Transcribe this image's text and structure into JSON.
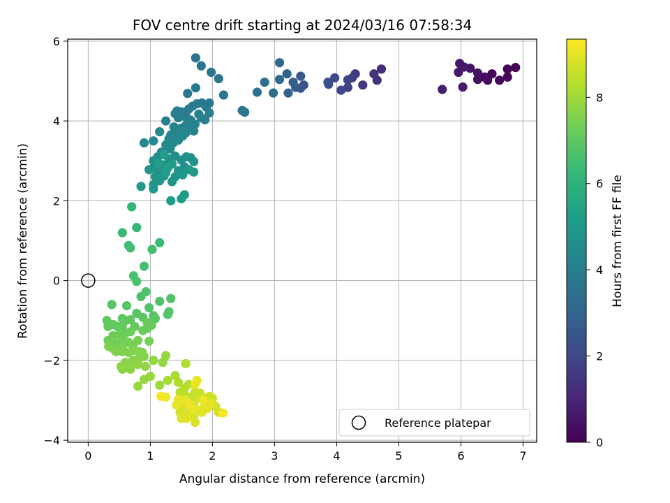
{
  "chart_data": {
    "type": "scatter",
    "title": "FOV centre drift starting at 2024/03/16 07:58:34",
    "xlabel": "Angular distance from reference (arcmin)",
    "ylabel": "Rotation from reference (arcmin)",
    "xlim": [
      -0.33,
      7.22
    ],
    "ylim": [
      -4.05,
      6.05
    ],
    "xticks": [
      0,
      1,
      2,
      3,
      4,
      5,
      6,
      7
    ],
    "yticks": [
      -4,
      -2,
      0,
      2,
      4,
      6
    ],
    "grid": true,
    "colormap": "viridis",
    "colorbar": {
      "label": "Hours from first FF file",
      "range": [
        0,
        9.35
      ],
      "ticks": [
        0,
        2,
        4,
        6,
        8
      ]
    },
    "reference_point": {
      "x": 0,
      "y": 0,
      "label": "Reference platepar"
    },
    "legend": {
      "location": "lower-right",
      "entries": [
        "Reference platepar"
      ]
    },
    "points": [
      [
        6.88,
        5.34,
        0.05
      ],
      [
        6.75,
        5.3,
        0.1
      ],
      [
        6.75,
        5.1,
        0.15
      ],
      [
        6.62,
        5.02,
        0.2
      ],
      [
        6.5,
        5.18,
        0.25
      ],
      [
        6.43,
        5.02,
        0.3
      ],
      [
        6.38,
        5.1,
        0.35
      ],
      [
        6.27,
        5.04,
        0.4
      ],
      [
        6.27,
        5.2,
        0.45
      ],
      [
        6.15,
        5.32,
        0.5
      ],
      [
        6.05,
        5.35,
        0.55
      ],
      [
        5.98,
        5.44,
        0.6
      ],
      [
        5.96,
        5.22,
        0.65
      ],
      [
        6.03,
        4.85,
        0.7
      ],
      [
        5.7,
        4.79,
        0.75
      ],
      [
        4.72,
        5.3,
        1.2
      ],
      [
        4.65,
        5.02,
        1.3
      ],
      [
        4.6,
        5.18,
        1.4
      ],
      [
        4.42,
        4.9,
        1.5
      ],
      [
        4.3,
        5.18,
        1.6
      ],
      [
        4.25,
        5.08,
        1.7
      ],
      [
        4.18,
        4.84,
        1.8
      ],
      [
        4.18,
        5.03,
        1.9
      ],
      [
        4.07,
        4.77,
        2.0
      ],
      [
        3.97,
        5.08,
        2.1
      ],
      [
        3.87,
        4.92,
        2.2
      ],
      [
        3.86,
        4.97,
        2.3
      ],
      [
        3.47,
        4.9,
        2.4
      ],
      [
        3.42,
        4.82,
        2.5
      ],
      [
        3.42,
        5.12,
        2.6
      ],
      [
        3.34,
        4.84,
        2.7
      ],
      [
        3.3,
        4.97,
        2.8
      ],
      [
        3.22,
        4.7,
        2.9
      ],
      [
        3.2,
        5.18,
        3.0
      ],
      [
        3.08,
        5.04,
        3.1
      ],
      [
        3.08,
        5.46,
        3.2
      ],
      [
        2.98,
        4.7,
        3.3
      ],
      [
        2.84,
        4.97,
        3.4
      ],
      [
        2.72,
        4.72,
        3.5
      ],
      [
        1.73,
        5.58,
        3.6
      ],
      [
        1.82,
        5.38,
        3.62
      ],
      [
        1.98,
        5.22,
        3.64
      ],
      [
        2.1,
        5.06,
        3.66
      ],
      [
        2.18,
        4.65,
        3.68
      ],
      [
        2.52,
        4.22,
        3.7
      ],
      [
        2.48,
        4.26,
        3.72
      ],
      [
        1.73,
        4.83,
        3.74
      ],
      [
        1.6,
        4.69,
        3.76
      ],
      [
        1.95,
        4.45,
        3.78
      ],
      [
        1.9,
        4.35,
        3.8
      ],
      [
        1.83,
        4.45,
        3.82
      ],
      [
        1.75,
        4.43,
        3.84
      ],
      [
        1.68,
        4.37,
        3.86
      ],
      [
        1.62,
        4.3,
        3.88
      ],
      [
        1.57,
        4.2,
        3.9
      ],
      [
        1.5,
        4.23,
        3.92
      ],
      [
        1.43,
        4.25,
        3.94
      ],
      [
        1.4,
        4.18,
        3.96
      ],
      [
        1.45,
        4.08,
        3.98
      ],
      [
        1.57,
        4.1,
        4.0
      ],
      [
        1.65,
        4.02,
        4.02
      ],
      [
        1.82,
        4.08,
        4.04
      ],
      [
        1.88,
        4.03,
        4.06
      ],
      [
        1.78,
        4.17,
        4.08
      ],
      [
        1.95,
        4.2,
        4.1
      ],
      [
        1.25,
        4.0,
        4.12
      ],
      [
        1.38,
        3.85,
        4.14
      ],
      [
        1.5,
        3.82,
        4.16
      ],
      [
        1.58,
        3.9,
        4.18
      ],
      [
        1.63,
        3.78,
        4.2
      ],
      [
        1.7,
        3.75,
        4.22
      ],
      [
        1.72,
        3.92,
        4.24
      ],
      [
        1.57,
        3.7,
        4.26
      ],
      [
        1.48,
        3.78,
        4.28
      ],
      [
        1.42,
        3.7,
        4.3
      ],
      [
        1.33,
        3.65,
        4.32
      ],
      [
        1.3,
        3.55,
        4.34
      ],
      [
        1.37,
        3.45,
        4.36
      ],
      [
        1.45,
        3.52,
        4.38
      ],
      [
        1.52,
        3.62,
        4.4
      ],
      [
        1.15,
        3.73,
        4.42
      ],
      [
        1.05,
        3.5,
        4.44
      ],
      [
        0.9,
        3.45,
        4.46
      ],
      [
        1.25,
        3.4,
        4.48
      ],
      [
        1.32,
        3.3,
        4.5
      ],
      [
        1.18,
        3.22,
        4.52
      ],
      [
        1.12,
        3.1,
        4.54
      ],
      [
        1.05,
        3.0,
        4.56
      ],
      [
        1.2,
        2.9,
        4.58
      ],
      [
        1.3,
        3.05,
        4.6
      ],
      [
        1.4,
        3.12,
        4.62
      ],
      [
        1.5,
        3.02,
        4.64
      ],
      [
        1.58,
        3.1,
        4.66
      ],
      [
        1.65,
        3.08,
        4.68
      ],
      [
        1.7,
        2.98,
        4.7
      ],
      [
        1.55,
        2.85,
        4.72
      ],
      [
        1.45,
        2.75,
        4.74
      ],
      [
        1.4,
        2.6,
        4.76
      ],
      [
        1.35,
        2.48,
        4.78
      ],
      [
        1.22,
        2.62,
        4.8
      ],
      [
        1.15,
        2.72,
        4.82
      ],
      [
        1.05,
        2.82,
        4.84
      ],
      [
        0.98,
        2.78,
        4.86
      ],
      [
        1.08,
        2.6,
        4.88
      ],
      [
        1.15,
        2.5,
        4.9
      ],
      [
        1.05,
        2.4,
        4.92
      ],
      [
        1.05,
        2.3,
        4.94
      ],
      [
        1.62,
        2.78,
        4.96
      ],
      [
        1.7,
        2.72,
        4.98
      ],
      [
        1.52,
        2.65,
        5.0
      ],
      [
        0.85,
        2.36,
        5.02
      ],
      [
        1.55,
        2.15,
        5.05
      ],
      [
        1.5,
        2.05,
        5.08
      ],
      [
        1.33,
        2.0,
        5.1
      ],
      [
        1.28,
        2.82,
        5.12
      ],
      [
        1.35,
        2.92,
        5.14
      ],
      [
        1.22,
        3.15,
        5.16
      ],
      [
        1.13,
        2.95,
        5.18
      ],
      [
        1.25,
        2.7,
        5.2
      ],
      [
        0.7,
        1.85,
        6.2
      ],
      [
        0.78,
        1.33,
        6.25
      ],
      [
        0.55,
        1.2,
        6.3
      ],
      [
        1.15,
        0.95,
        6.35
      ],
      [
        0.65,
        0.88,
        6.4
      ],
      [
        0.68,
        0.82,
        6.45
      ],
      [
        1.03,
        0.78,
        6.5
      ],
      [
        0.9,
        0.36,
        6.55
      ],
      [
        0.73,
        0.12,
        6.6
      ],
      [
        0.78,
        -0.02,
        6.65
      ],
      [
        0.93,
        -0.28,
        6.7
      ],
      [
        0.85,
        -0.4,
        6.72
      ],
      [
        1.33,
        -0.45,
        6.74
      ],
      [
        1.15,
        -0.52,
        6.76
      ],
      [
        0.98,
        -0.68,
        6.78
      ],
      [
        1.3,
        -0.78,
        6.8
      ],
      [
        1.28,
        -0.85,
        6.82
      ],
      [
        1.05,
        -0.88,
        6.84
      ],
      [
        0.38,
        -0.6,
        6.86
      ],
      [
        0.62,
        -0.63,
        6.88
      ],
      [
        0.78,
        -0.82,
        6.9
      ],
      [
        0.88,
        -0.92,
        6.92
      ],
      [
        1.08,
        -0.95,
        6.94
      ],
      [
        0.55,
        -0.95,
        6.96
      ],
      [
        0.6,
        -1.0,
        6.98
      ],
      [
        0.68,
        -0.98,
        7.0
      ],
      [
        0.3,
        -1.0,
        7.02
      ],
      [
        0.4,
        -1.1,
        7.04
      ],
      [
        0.47,
        -1.15,
        7.06
      ],
      [
        0.32,
        -1.15,
        7.08
      ],
      [
        0.55,
        -1.15,
        7.1
      ],
      [
        0.75,
        -1.15,
        7.12
      ],
      [
        0.95,
        -1.05,
        7.14
      ],
      [
        1.02,
        -1.12,
        7.16
      ],
      [
        0.95,
        -1.2,
        7.18
      ],
      [
        0.88,
        -1.25,
        7.2
      ],
      [
        0.68,
        -1.28,
        7.22
      ],
      [
        0.6,
        -1.32,
        7.24
      ],
      [
        0.5,
        -1.35,
        7.26
      ],
      [
        0.4,
        -1.38,
        7.28
      ],
      [
        0.32,
        -1.5,
        7.3
      ],
      [
        0.45,
        -1.58,
        7.32
      ],
      [
        0.55,
        -1.48,
        7.34
      ],
      [
        0.65,
        -1.55,
        7.36
      ],
      [
        0.72,
        -1.62,
        7.38
      ],
      [
        0.8,
        -1.5,
        7.4
      ],
      [
        0.98,
        -1.52,
        7.42
      ],
      [
        0.55,
        -1.68,
        7.44
      ],
      [
        0.4,
        -1.7,
        7.46
      ],
      [
        0.33,
        -1.65,
        7.48
      ],
      [
        0.45,
        -1.78,
        7.5
      ],
      [
        0.55,
        -1.78,
        7.52
      ],
      [
        0.65,
        -1.8,
        7.54
      ],
      [
        0.73,
        -1.75,
        7.56
      ],
      [
        0.82,
        -1.78,
        7.58
      ],
      [
        0.87,
        -1.8,
        7.6
      ],
      [
        0.9,
        -1.9,
        7.62
      ],
      [
        0.82,
        -1.95,
        7.64
      ],
      [
        0.72,
        -2.0,
        7.66
      ],
      [
        0.6,
        -2.05,
        7.68
      ],
      [
        0.53,
        -2.15,
        7.7
      ],
      [
        0.62,
        -2.18,
        7.72
      ],
      [
        0.68,
        -2.22,
        7.74
      ],
      [
        0.55,
        -2.22,
        7.76
      ],
      [
        0.8,
        -2.1,
        7.78
      ],
      [
        0.92,
        -2.15,
        7.8
      ],
      [
        1.05,
        -2.0,
        7.82
      ],
      [
        1.2,
        -2.05,
        7.84
      ],
      [
        1.25,
        -1.88,
        7.86
      ],
      [
        0.9,
        -2.48,
        7.88
      ],
      [
        1.0,
        -2.4,
        7.9
      ],
      [
        0.8,
        -2.65,
        7.92
      ],
      [
        1.15,
        -2.62,
        7.95
      ],
      [
        1.28,
        -2.5,
        8.1
      ],
      [
        1.4,
        -2.38,
        8.15
      ],
      [
        1.45,
        -2.55,
        8.2
      ],
      [
        1.57,
        -2.08,
        8.25
      ],
      [
        1.62,
        -2.6,
        8.3
      ],
      [
        1.55,
        -2.7,
        8.35
      ],
      [
        1.48,
        -2.8,
        8.4
      ],
      [
        1.58,
        -2.9,
        8.45
      ],
      [
        1.65,
        -2.92,
        8.5
      ],
      [
        1.72,
        -2.8,
        8.55
      ],
      [
        1.75,
        -2.95,
        8.6
      ],
      [
        1.8,
        -2.82,
        8.62
      ],
      [
        1.85,
        -2.95,
        8.64
      ],
      [
        1.95,
        -2.9,
        8.66
      ],
      [
        2.0,
        -2.95,
        8.68
      ],
      [
        2.05,
        -3.15,
        8.7
      ],
      [
        2.1,
        -3.3,
        8.72
      ],
      [
        1.7,
        -3.12,
        8.74
      ],
      [
        1.6,
        -3.05,
        8.76
      ],
      [
        1.52,
        -3.15,
        8.78
      ],
      [
        1.48,
        -3.3,
        8.8
      ],
      [
        1.62,
        -3.32,
        8.82
      ],
      [
        1.7,
        -3.42,
        8.84
      ],
      [
        1.72,
        -3.55,
        8.86
      ],
      [
        1.58,
        -3.45,
        8.88
      ],
      [
        1.5,
        -3.45,
        8.9
      ],
      [
        1.78,
        -3.25,
        8.92
      ],
      [
        1.88,
        -3.1,
        8.94
      ],
      [
        1.92,
        -3.2,
        8.96
      ],
      [
        1.83,
        -3.3,
        8.98
      ],
      [
        1.97,
        -3.08,
        9.0
      ],
      [
        1.45,
        -2.98,
        9.02
      ],
      [
        1.42,
        -3.12,
        9.04
      ],
      [
        1.55,
        -3.0,
        9.06
      ],
      [
        1.68,
        -3.2,
        9.08
      ],
      [
        1.75,
        -2.5,
        9.1
      ],
      [
        1.72,
        -2.6,
        9.12
      ],
      [
        1.63,
        -3.1,
        9.14
      ],
      [
        1.85,
        -3.0,
        9.16
      ],
      [
        1.25,
        -2.92,
        9.18
      ],
      [
        1.17,
        -2.9,
        9.2
      ],
      [
        2.17,
        -3.32,
        9.25
      ]
    ]
  }
}
